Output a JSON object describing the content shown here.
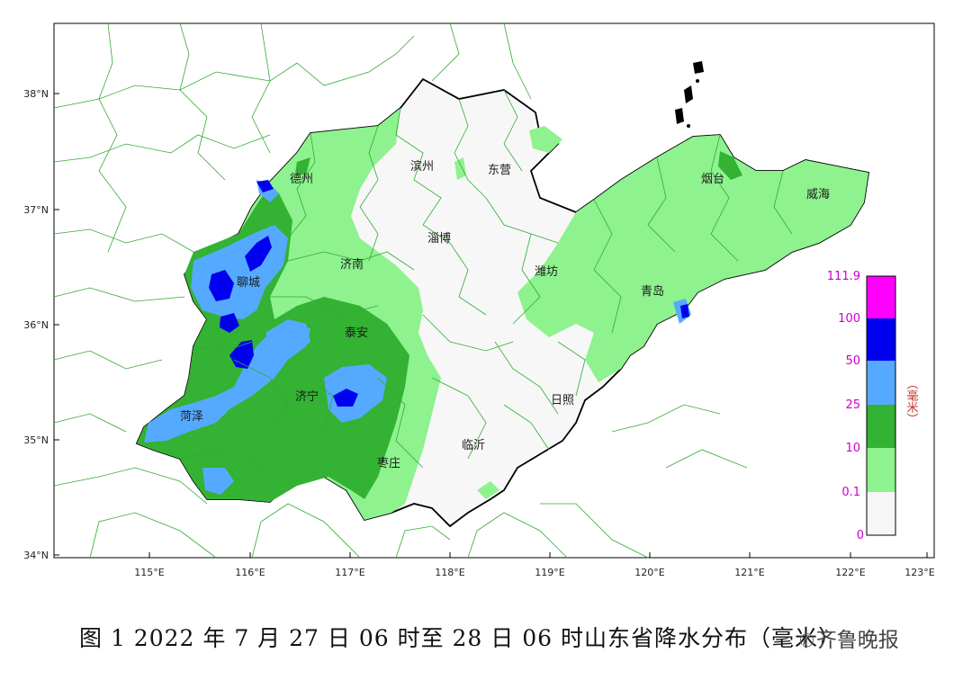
{
  "map": {
    "lat_labels": [
      "38°N",
      "37°N",
      "36°N",
      "35°N",
      "34°N"
    ],
    "lon_labels": [
      "115°E",
      "116°E",
      "117°E",
      "118°E",
      "119°E",
      "120°E",
      "121°E",
      "122°E",
      "123°E"
    ],
    "cities": {
      "dezhou": "德州",
      "binzhou": "滨州",
      "dongying": "东营",
      "yantai": "烟台",
      "weihai": "威海",
      "zibo": "淄博",
      "jinan": "济南",
      "liaocheng": "聊城",
      "weifang": "潍坊",
      "qingdao": "青岛",
      "taian": "泰安",
      "jining": "济宁",
      "heze": "菏泽",
      "rizhao": "日照",
      "linyi": "临沂",
      "zaozhuang": "枣庄"
    },
    "colors": {
      "none": "#f7f7f7",
      "light": "#8ef28e",
      "moderate": "#33b233",
      "heavy": "#55aaff",
      "storm": "#0000ee",
      "extreme": "#ff00ff",
      "border": "#000000",
      "county": "#33aa33"
    }
  },
  "legend": {
    "labels": [
      "111.9",
      "100",
      "50",
      "25",
      "10",
      "0.1",
      "0"
    ],
    "unit": "（毫米）"
  },
  "caption": "图 1 2022 年 7 月 27 日 06 时至 28 日 06 时山东省降水分布（毫米）",
  "watermark": {
    "icon": "wechat-icon",
    "text": "齐鲁晚报"
  }
}
